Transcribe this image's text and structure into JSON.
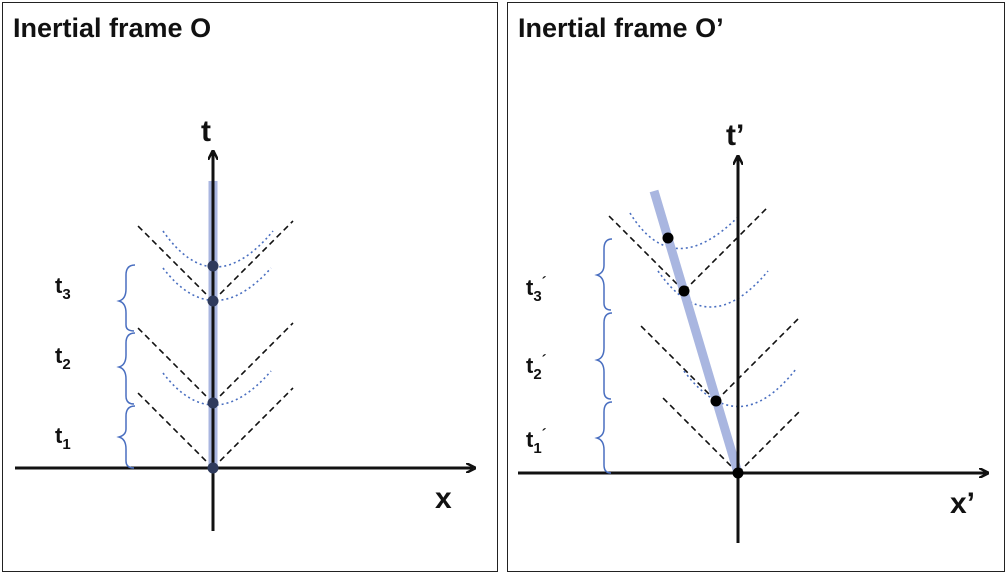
{
  "left": {
    "title": "Inertial frame O",
    "x_label": "x",
    "t_label": "t",
    "interval_labels": [
      {
        "base": "t",
        "sub": "3",
        "prime": ""
      },
      {
        "base": "t",
        "sub": "2",
        "prime": ""
      },
      {
        "base": "t",
        "sub": "1",
        "prime": ""
      }
    ]
  },
  "right": {
    "title": "Inertial frame O’",
    "x_label": "x’",
    "t_label": "t’",
    "interval_labels": [
      {
        "base": "t",
        "sub": "3",
        "prime": "´"
      },
      {
        "base": "t",
        "sub": "2",
        "prime": "´"
      },
      {
        "base": "t",
        "sub": "1",
        "prime": "´"
      }
    ]
  },
  "colors": {
    "worldline": "#a9b6e0",
    "event_left": "#2e3a5c",
    "event_right": "#000000",
    "brace": "#4a6fc0",
    "hyperbola": "#4a6fc0",
    "light_cone": "#111111",
    "axis": "#111111"
  }
}
